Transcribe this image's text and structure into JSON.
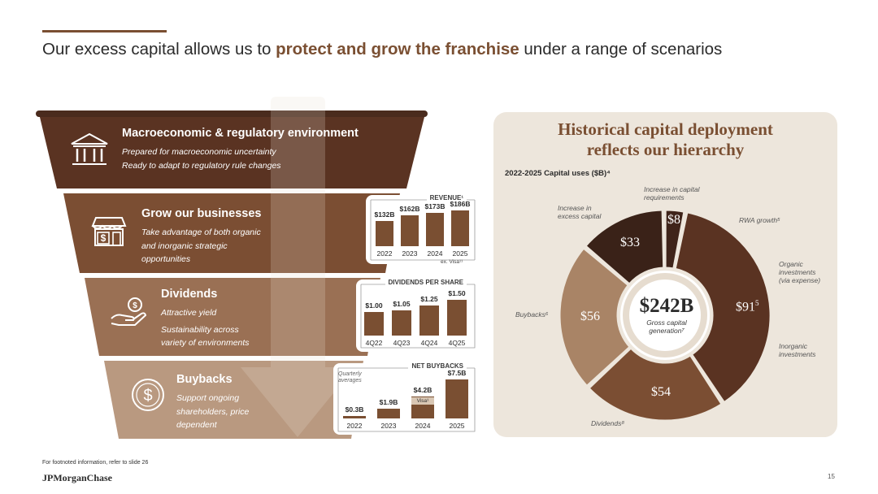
{
  "header": {
    "title_pre": "Our excess capital allows us to ",
    "title_highlight": "protect and grow the franchise",
    "title_post": " under a range of scenarios"
  },
  "funnel": {
    "tiers": [
      {
        "title": "Macroeconomic & regulatory environment",
        "lines": [
          "Prepared for macroeconomic uncertainty",
          "Ready to adapt to regulatory rule changes"
        ],
        "icon": "bank-building-icon",
        "color": "#5a3322"
      },
      {
        "title": "Grow our businesses",
        "lines": [
          "Take advantage of both organic",
          "and inorganic strategic",
          "opportunities"
        ],
        "icon": "storefront-dollar-icon",
        "color": "#7b4e33"
      },
      {
        "title": "Dividends",
        "lines": [
          "Attractive yield",
          "Sustainability across",
          "variety of environments"
        ],
        "icon": "hand-coin-icon",
        "color": "#9a7054"
      },
      {
        "title": "Buybacks",
        "lines": [
          "Support ongoing",
          "shareholders, price",
          "dependent"
        ],
        "icon": "dollar-circle-icon",
        "color": "#b99980"
      }
    ]
  },
  "revenue": {
    "heading": "REVENUE¹",
    "note": "ex. Visa¹¹"
  },
  "dividends": {
    "heading": "DIVIDENDS PER SHARE"
  },
  "buybacks": {
    "heading": "NET BUYBACKS",
    "note": "Quarterly averages",
    "note_lines": [
      "Quarterly",
      "averages"
    ],
    "visa_label": "Visa¹"
  },
  "right_panel": {
    "title_lines": [
      "Historical capital deployment",
      "reflects our hierarchy"
    ],
    "subtitle": "2022-2025 Capital uses ($B)⁴",
    "center_value": "$242B",
    "center_sub_lines": [
      "Gross capital",
      "generation⁷"
    ]
  },
  "footer": {
    "footnote": "For footnoted information, refer to slide 26",
    "brand": "JPMorganChase",
    "page": "15"
  },
  "colors": {
    "accent": "#7a4f32",
    "tier1": "#5a3322",
    "tier2": "#7b4e33",
    "tier3": "#9a7054",
    "tier4": "#b99980",
    "panel_bg": "#ede6dc"
  },
  "chart_data": [
    {
      "type": "bar",
      "title": "REVENUE¹",
      "categories": [
        "2022",
        "2023",
        "2024",
        "2025"
      ],
      "values": [
        132,
        162,
        173,
        186
      ],
      "labels": [
        "$132B",
        "$162B",
        "$173B",
        "$186B"
      ],
      "note": "ex. Visa¹¹"
    },
    {
      "type": "bar",
      "title": "DIVIDENDS PER SHARE",
      "categories": [
        "4Q22",
        "4Q23",
        "4Q24",
        "4Q25"
      ],
      "values": [
        1.0,
        1.05,
        1.25,
        1.5
      ],
      "labels": [
        "$1.00",
        "$1.05",
        "$1.25",
        "$1.50"
      ]
    },
    {
      "type": "bar",
      "title": "NET BUYBACKS",
      "categories": [
        "2022",
        "2023",
        "2024",
        "2025"
      ],
      "values": [
        0.3,
        1.9,
        4.2,
        7.5
      ],
      "labels": [
        "$0.3B",
        "$1.9B",
        "$4.2B",
        "$7.5B"
      ],
      "annotation": "Quarterly averages",
      "stacked_note": "2024 includes Visa¹ segment"
    },
    {
      "type": "pie",
      "title": "Historical capital deployment reflects our hierarchy",
      "subtitle": "2022-2025 Capital uses ($B)⁴",
      "center_label": "$242B",
      "center_sublabel": "Gross capital generation⁷",
      "series": [
        {
          "name": "Increase in capital requirements",
          "value": 8,
          "label": "$8",
          "color": "#3f241a"
        },
        {
          "name": "RWA growth⁵ / Organic investments (via expense) / Inorganic investments",
          "value": 91,
          "label": "$91⁵",
          "color": "#5a3322"
        },
        {
          "name": "Dividends⁸",
          "value": 54,
          "label": "$54",
          "color": "#7b4e33"
        },
        {
          "name": "Buybacks⁶",
          "value": 56,
          "label": "$56",
          "color": "#a98466"
        },
        {
          "name": "Increase in excess capital",
          "value": 33,
          "label": "$33",
          "color": "#3a2218"
        }
      ]
    }
  ]
}
